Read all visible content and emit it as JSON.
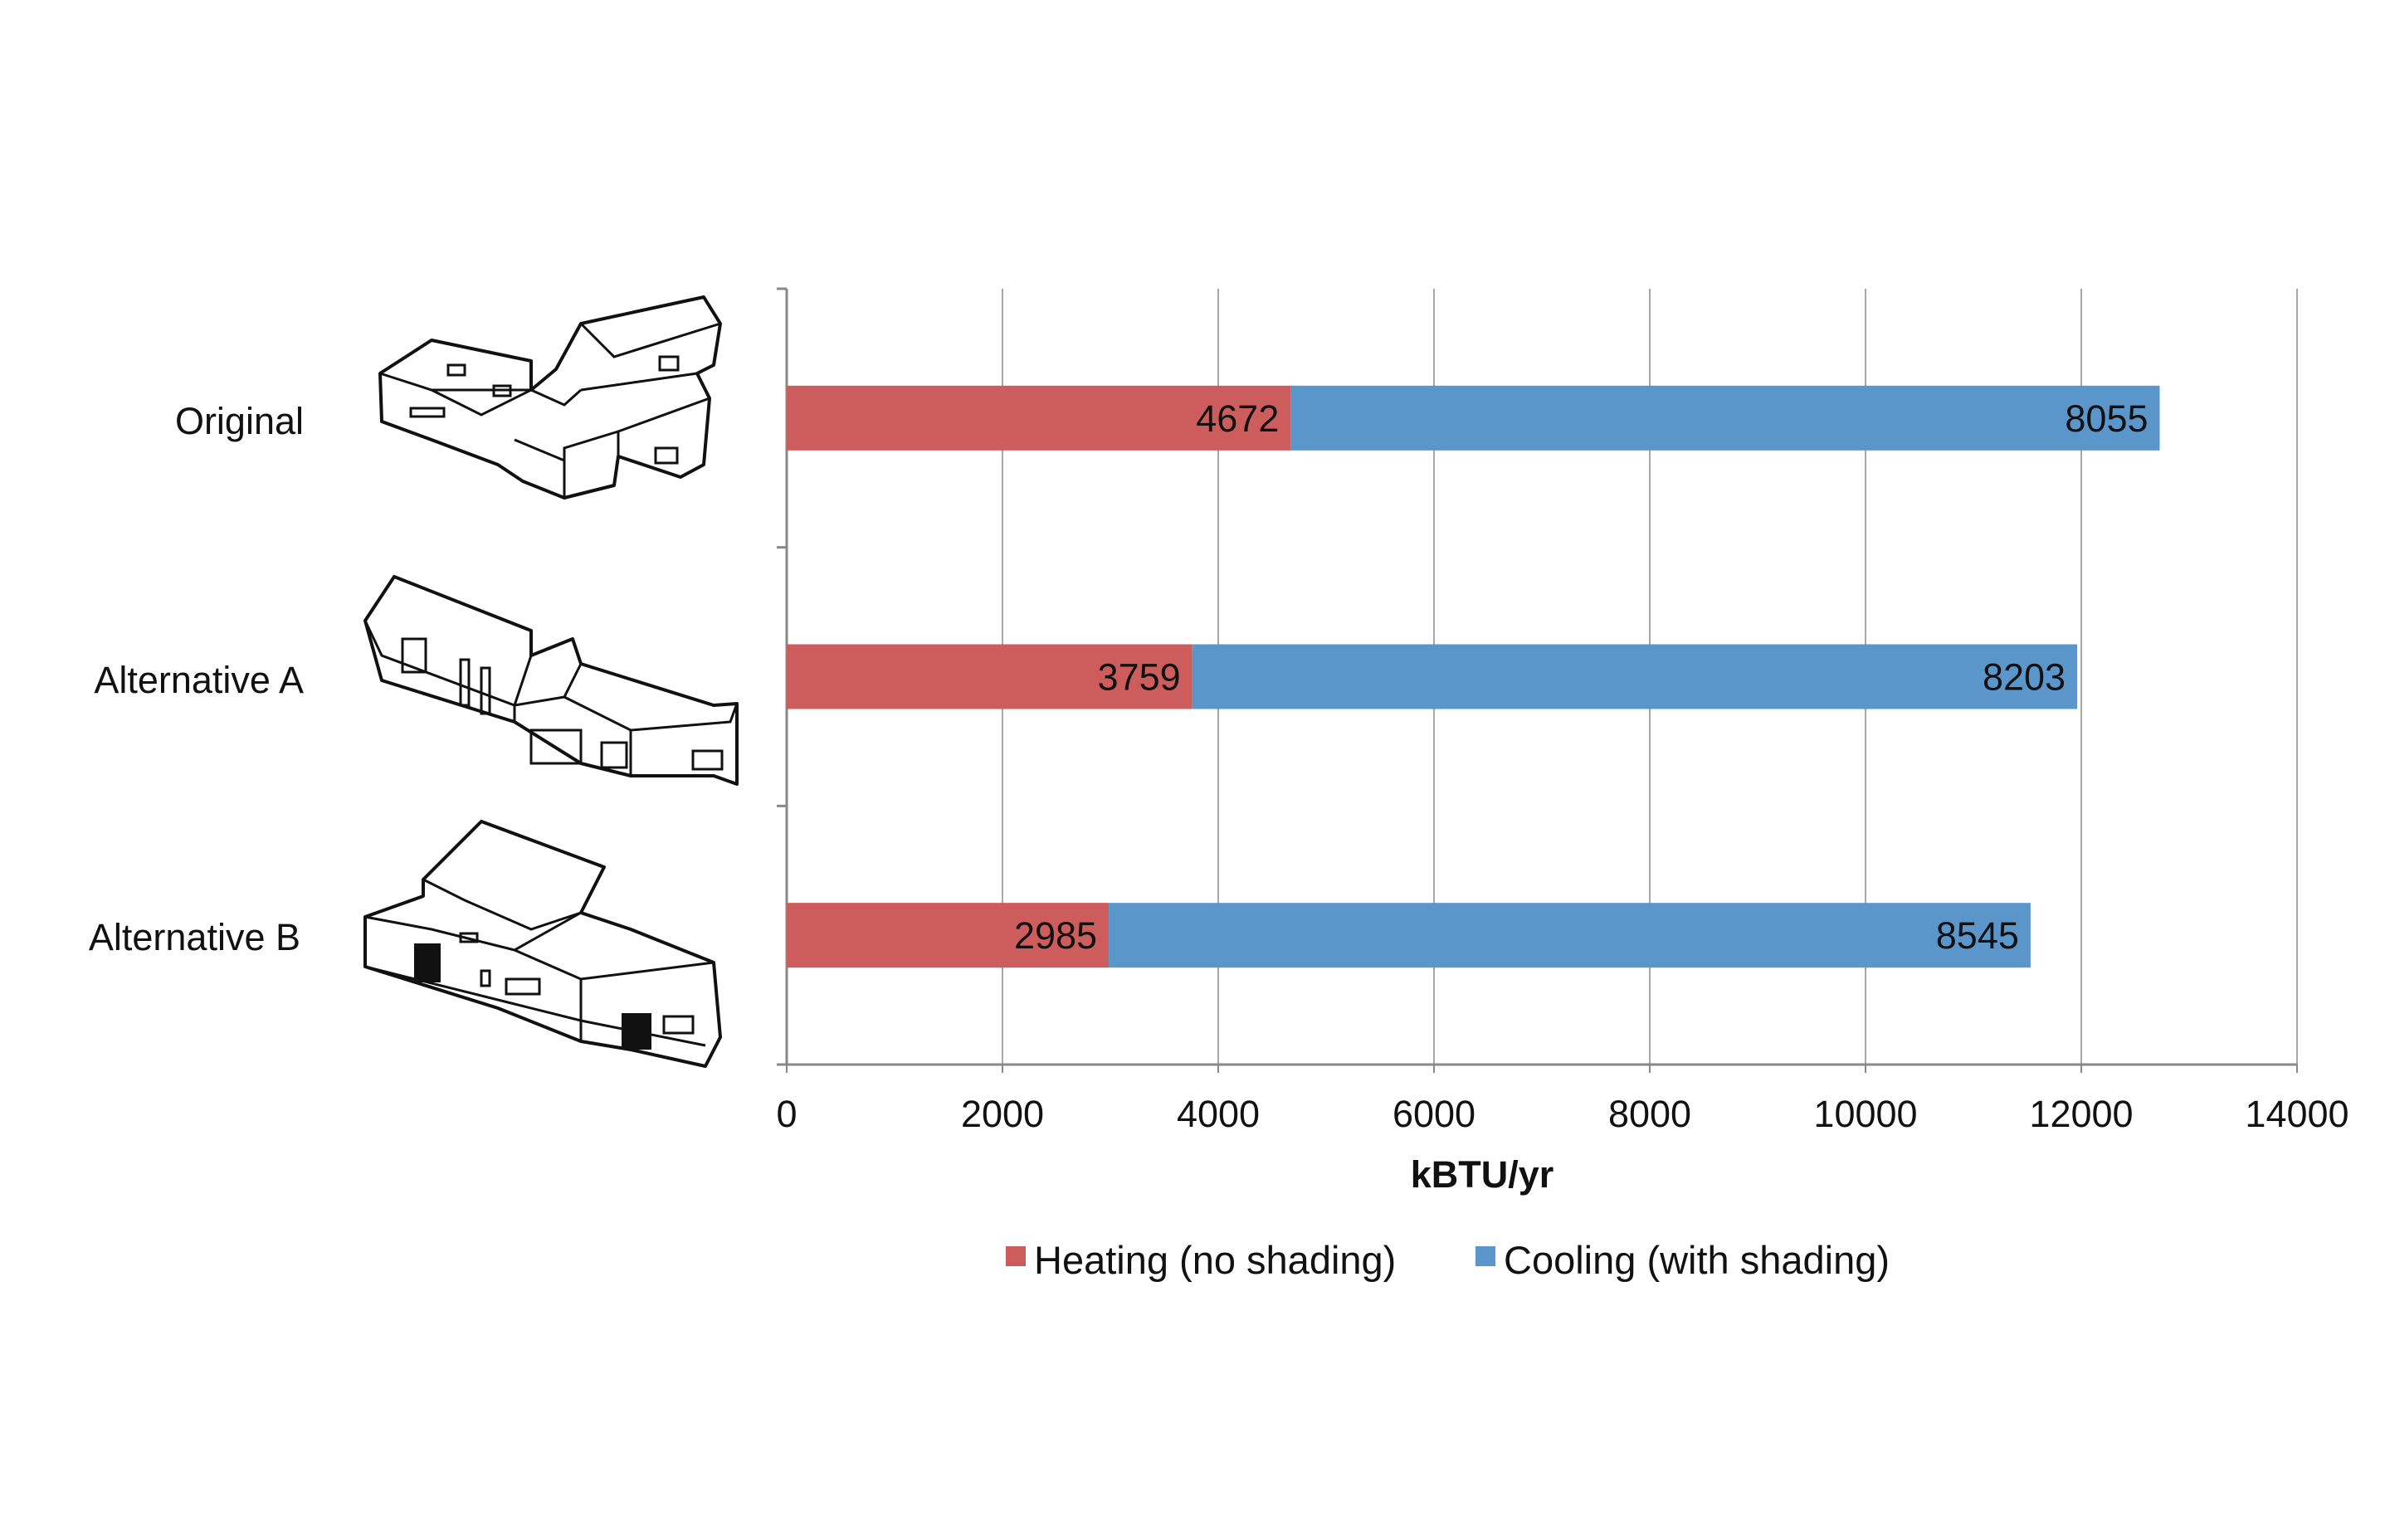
{
  "chart_data": {
    "type": "bar",
    "orientation": "horizontal",
    "stacked": true,
    "categories": [
      "Original",
      "Alternative A",
      "Alternative B"
    ],
    "series": [
      {
        "name": "Heating (no shading)",
        "color": "#cd5c5c",
        "values": [
          4672,
          3759,
          2985
        ]
      },
      {
        "name": "Cooling (with shading)",
        "color": "#5b96cb",
        "values": [
          8055,
          8203,
          8545
        ]
      }
    ],
    "xlabel": "kBTU/yr",
    "xlim": [
      0,
      14000
    ],
    "xticks": [
      "0",
      "2000",
      "4000",
      "6000",
      "8000",
      "10000",
      "12000",
      "14000"
    ],
    "grid": "vertical",
    "legend_position": "bottom",
    "icons": [
      "house-original-icon",
      "house-alternative-a-icon",
      "house-alternative-b-icon"
    ]
  }
}
